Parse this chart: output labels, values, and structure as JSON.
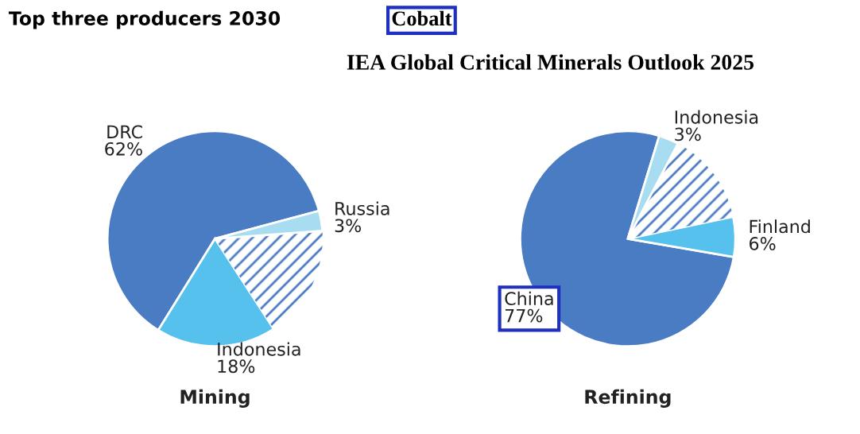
{
  "chart_data": [
    {
      "type": "pie",
      "title": "Mining",
      "categories": [
        "DRC",
        "Indonesia",
        null,
        "Russia"
      ],
      "values": [
        62,
        18,
        17,
        3
      ],
      "value_labels": [
        "62%",
        "18%",
        null,
        "3%"
      ],
      "colors": [
        "#4a7cc4",
        "#55c1ec",
        "#ffffff",
        "#a8dcf0"
      ],
      "annotations": [
        "Top three producers 2030",
        "Cobalt",
        "IEA Global Critical Minerals Outlook 2025"
      ]
    },
    {
      "type": "pie",
      "title": "Refining",
      "categories": [
        "China",
        "Finland",
        null,
        "Indonesia"
      ],
      "values": [
        77,
        6,
        14,
        3
      ],
      "value_labels": [
        "77%",
        "6%",
        null,
        "3%"
      ],
      "colors": [
        "#4a7cc4",
        "#55c1ec",
        "#ffffff",
        "#a8dcf0"
      ]
    }
  ]
}
